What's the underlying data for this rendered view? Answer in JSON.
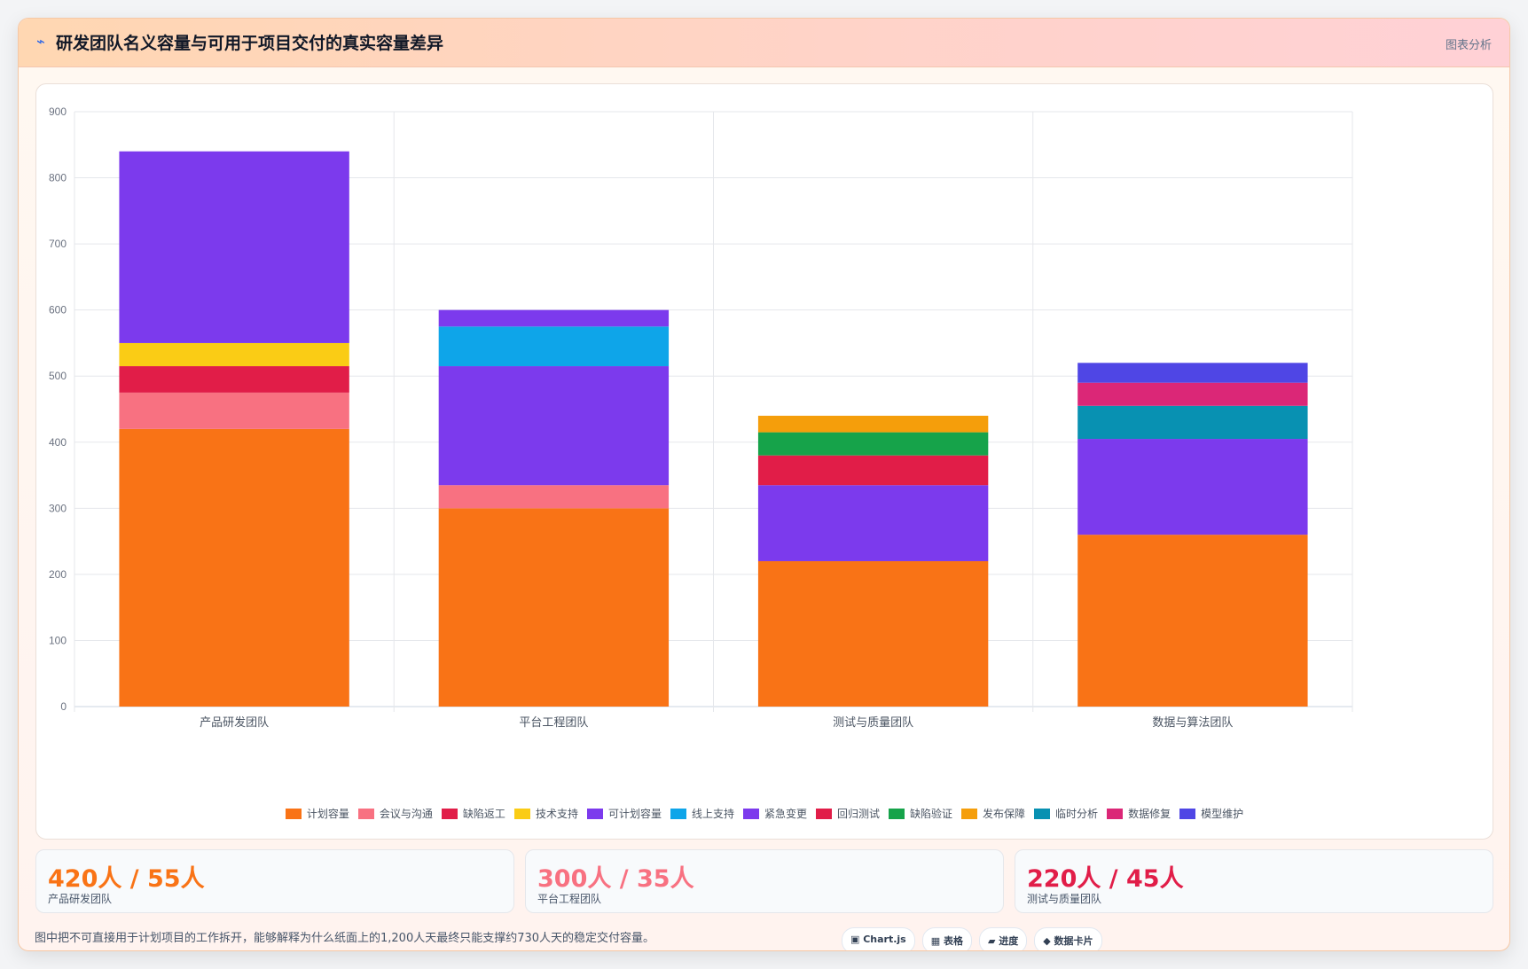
{
  "header": {
    "icon": "⌁",
    "title": "研发团队名义容量与可用于项目交付的真实容量差异",
    "tag": "图表分析"
  },
  "chart_data": {
    "type": "bar",
    "stacked": true,
    "categories": [
      "产品研发团队",
      "平台工程团队",
      "测试与质量团队",
      "数据与算法团队"
    ],
    "ylim": [
      0,
      900
    ],
    "yticks": [
      0,
      100,
      200,
      300,
      400,
      500,
      600,
      700,
      800,
      900
    ],
    "series": [
      {
        "name": "计划容量",
        "color": "#f97316",
        "values": [
          420,
          300,
          220,
          260
        ]
      },
      {
        "name": "会议与沟通",
        "color": "#f87181",
        "values": [
          55,
          35,
          0,
          0
        ]
      },
      {
        "name": "缺陷返工",
        "color": "#e11d48",
        "values": [
          40,
          0,
          0,
          0
        ]
      },
      {
        "name": "技术支持",
        "color": "#facc15",
        "values": [
          35,
          0,
          0,
          0
        ]
      },
      {
        "name": "可计划容量",
        "color": "#7c3aed",
        "values": [
          290,
          180,
          115,
          145
        ]
      },
      {
        "name": "线上支持",
        "color": "#0ea5e9",
        "values": [
          0,
          60,
          0,
          0
        ]
      },
      {
        "name": "紧急变更",
        "color": "#7c3aed",
        "values": [
          0,
          25,
          0,
          0
        ]
      },
      {
        "name": "回归测试",
        "color": "#e11d48",
        "values": [
          0,
          0,
          45,
          0
        ]
      },
      {
        "name": "缺陷验证",
        "color": "#16a34a",
        "values": [
          0,
          0,
          35,
          0
        ]
      },
      {
        "name": "发布保障",
        "color": "#f59e0b",
        "values": [
          0,
          0,
          25,
          0
        ]
      },
      {
        "name": "临时分析",
        "color": "#0891b2",
        "values": [
          0,
          0,
          0,
          50
        ]
      },
      {
        "name": "数据修复",
        "color": "#db2777",
        "values": [
          0,
          0,
          0,
          35
        ]
      },
      {
        "name": "模型维护",
        "color": "#4f46e5",
        "values": [
          0,
          0,
          0,
          30
        ]
      }
    ],
    "grid": true,
    "legend": "bottom"
  },
  "stats": [
    {
      "value": "420人 / 55人",
      "label": "产品研发团队",
      "color": "#f97316"
    },
    {
      "value": "300人 / 35人",
      "label": "平台工程团队",
      "color": "#f87181"
    },
    {
      "value": "220人 / 45人",
      "label": "测试与质量团队",
      "color": "#e11d48"
    }
  ],
  "footer": {
    "note": "图中把不可直接用于计划项目的工作拆开，能够解释为什么纸面上的1,200人天最终只能支撑约730人天的稳定交付容量。",
    "chips": [
      "▣ Chart.js",
      "▦ 表格",
      "▰ 进度",
      "◆ 数据卡片"
    ]
  }
}
